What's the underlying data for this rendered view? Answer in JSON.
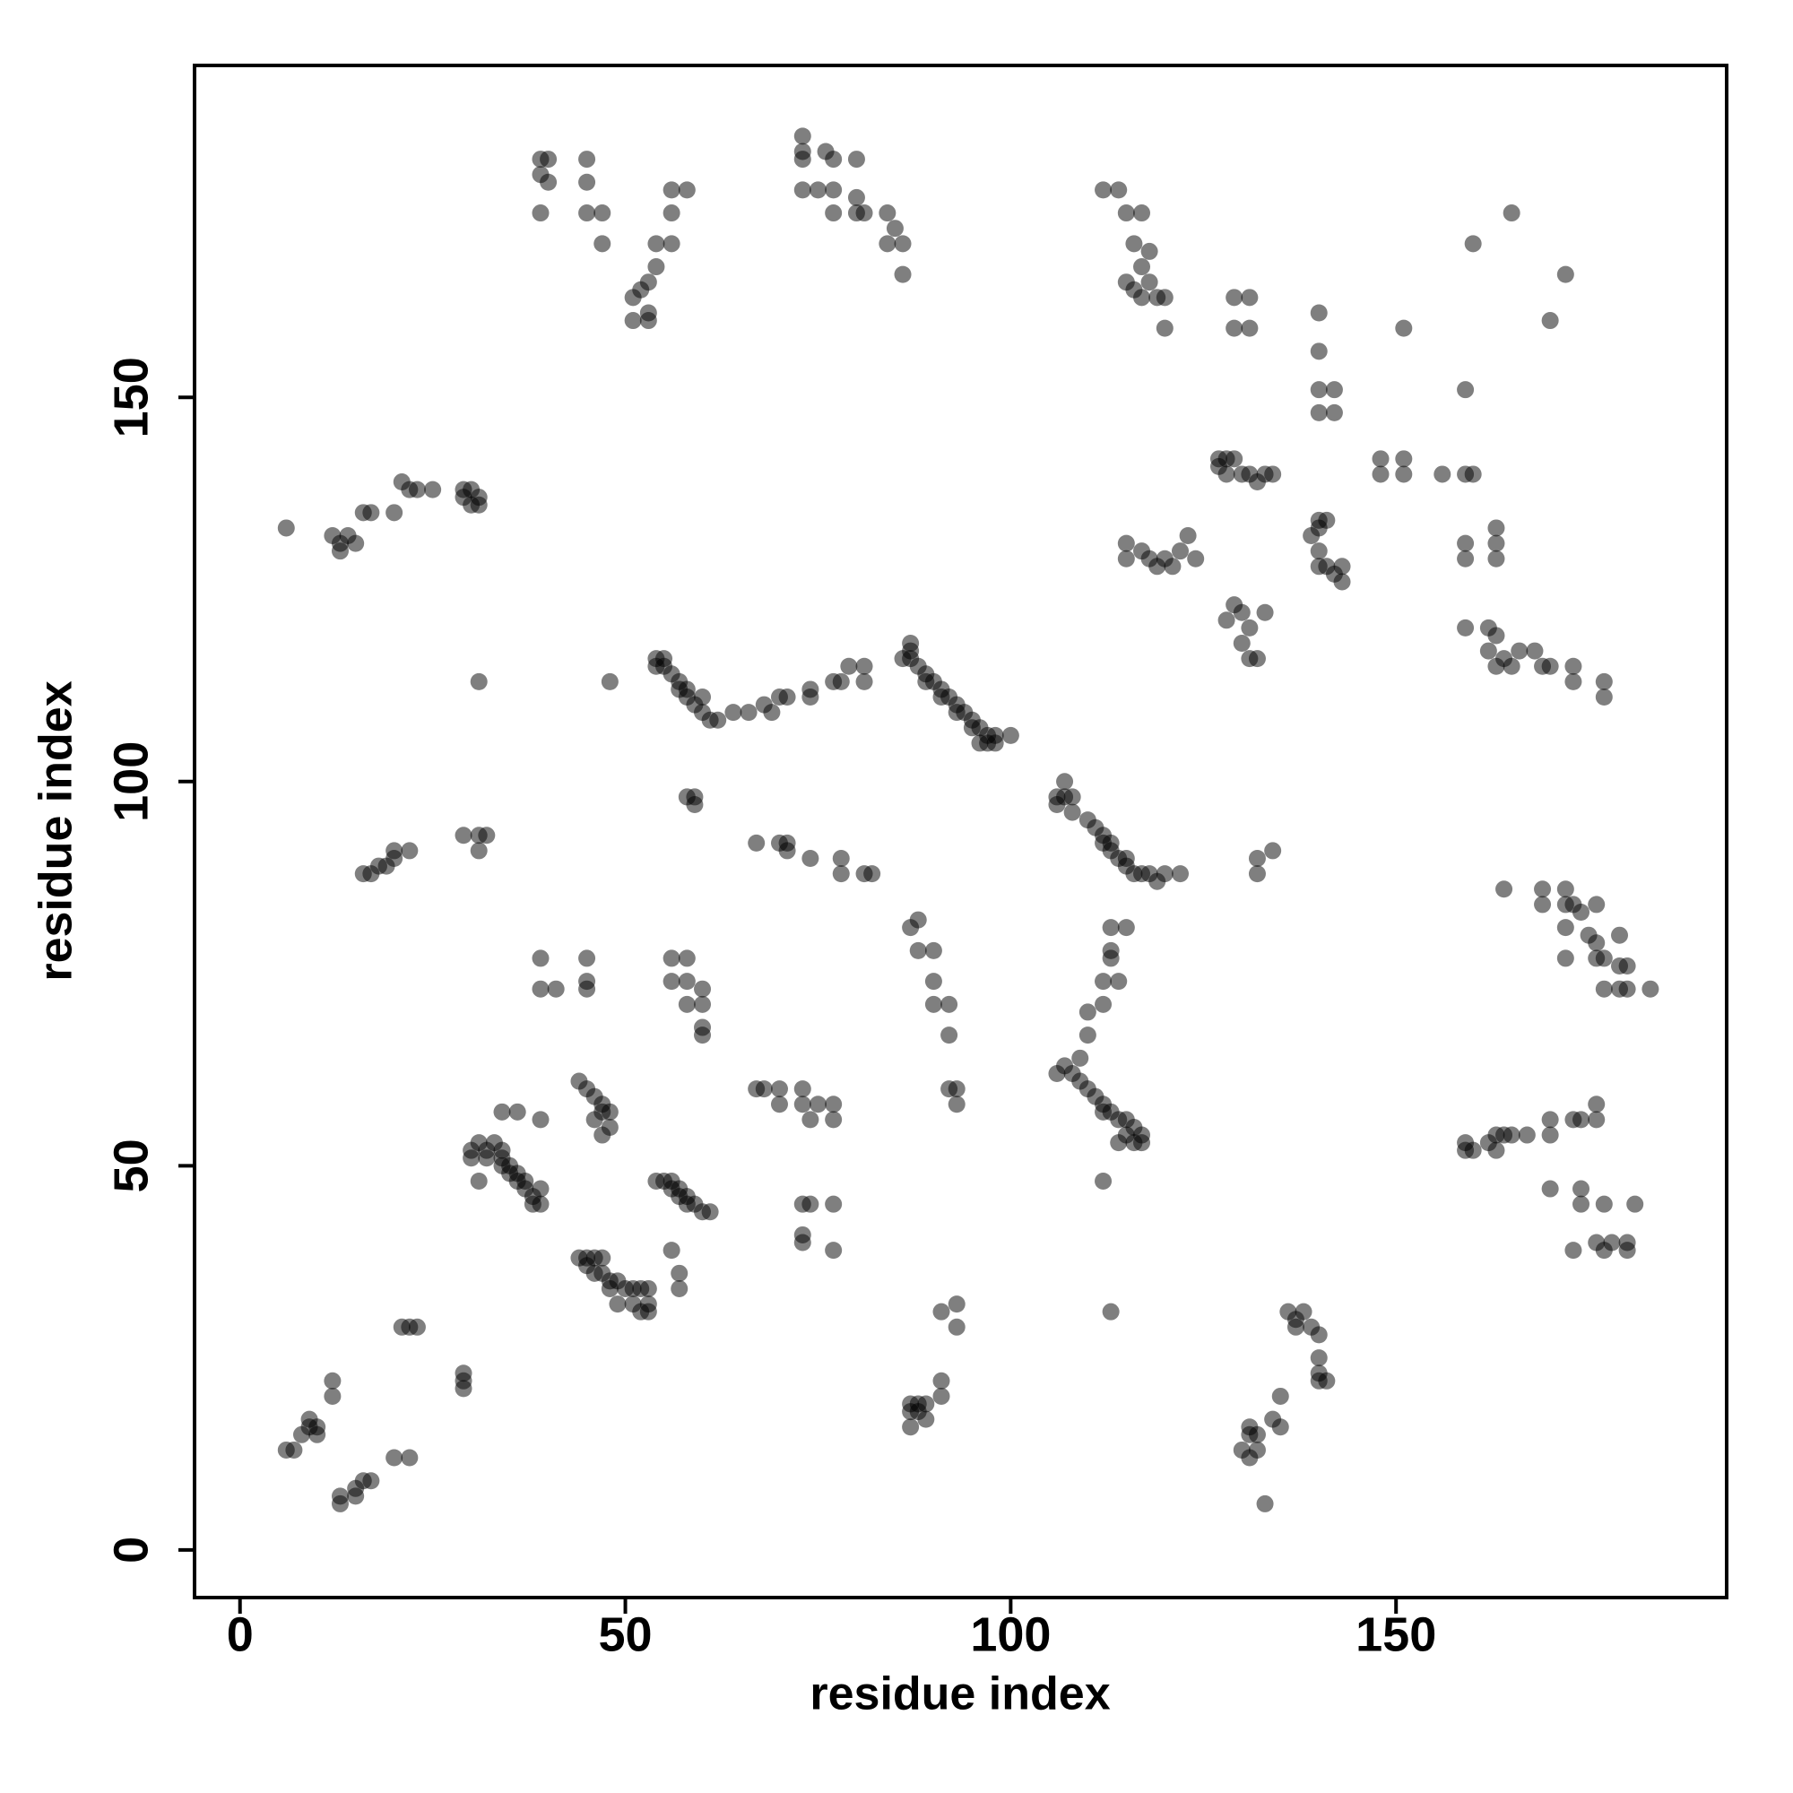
{
  "chart_data": {
    "type": "scatter",
    "xlabel": "residue index",
    "ylabel": "residue index",
    "xlim": [
      -5.9,
      192.9
    ],
    "ylim": [
      -6.2,
      193.2
    ],
    "xticks": [
      0,
      50,
      100,
      150
    ],
    "yticks": [
      0,
      50,
      100,
      150
    ],
    "color": "#000000",
    "opacity": 0.5,
    "x": [
      39,
      40,
      39,
      40,
      39,
      45,
      45,
      45,
      47,
      47,
      56,
      58,
      56,
      54,
      56,
      54,
      53,
      52,
      51,
      53,
      51,
      53,
      73,
      73,
      73,
      76,
      77,
      80,
      73,
      75,
      77,
      80,
      77,
      80,
      81,
      84,
      85,
      84,
      86,
      86,
      112,
      114,
      115,
      117,
      116,
      118,
      117,
      115,
      116,
      118,
      117,
      119,
      120,
      120,
      129,
      131,
      129,
      131,
      140,
      140,
      140,
      142,
      142,
      140,
      151,
      160,
      165,
      172,
      170,
      159,
      148,
      151,
      148,
      151,
      156,
      159,
      160,
      127,
      128,
      129,
      127,
      128,
      130,
      131,
      132,
      133,
      134,
      140,
      140,
      141,
      139,
      140,
      140,
      141,
      142,
      143,
      143,
      115,
      115,
      117,
      118,
      119,
      120,
      121,
      122,
      123,
      124,
      128,
      129,
      130,
      131,
      130,
      131,
      132,
      133,
      159,
      159,
      163,
      163,
      163,
      159,
      162,
      163,
      162,
      163,
      164,
      166,
      165,
      168,
      169,
      170,
      173,
      173,
      177,
      177,
      6,
      12,
      13,
      13,
      14,
      15,
      16,
      17,
      20,
      21,
      22,
      23,
      25,
      29,
      30,
      29,
      30,
      31,
      31,
      31,
      48,
      54,
      55,
      54,
      55,
      56,
      57,
      57,
      58,
      58,
      59,
      60,
      60,
      61,
      62,
      64,
      66,
      68,
      69,
      70,
      71,
      74,
      74,
      77,
      78,
      79,
      81,
      81,
      87,
      87,
      86,
      87,
      88,
      89,
      89,
      90,
      91,
      91,
      92,
      93,
      93,
      94,
      95,
      95,
      96,
      97,
      98,
      98,
      96,
      97,
      100,
      107,
      106,
      107,
      108,
      106,
      108,
      110,
      111,
      112,
      112,
      113,
      113,
      114,
      115,
      115,
      116,
      117,
      118,
      119,
      120,
      122,
      58,
      59,
      59,
      67,
      70,
      71,
      71,
      74,
      78,
      78,
      81,
      82,
      16,
      17,
      18,
      19,
      20,
      20,
      22,
      29,
      31,
      32,
      31,
      132,
      134,
      132,
      164,
      169,
      169,
      172,
      172,
      173,
      174,
      176,
      172,
      175,
      176,
      179,
      172,
      176,
      177,
      179,
      180,
      177,
      179,
      180,
      183,
      87,
      88,
      88,
      90,
      90,
      90,
      92,
      92,
      39,
      39,
      41,
      45,
      45,
      45,
      56,
      58,
      56,
      58,
      58,
      60,
      60,
      60,
      60,
      115,
      113,
      113,
      113,
      112,
      114,
      112,
      110,
      110,
      109,
      108,
      107,
      106,
      109,
      110,
      111,
      112,
      112,
      113,
      114,
      115,
      115,
      116,
      117,
      114,
      116,
      117,
      112,
      44,
      45,
      46,
      47,
      47,
      48,
      46,
      48,
      47,
      67,
      68,
      70,
      70,
      73,
      73,
      75,
      74,
      77,
      77,
      34,
      36,
      39,
      30,
      30,
      31,
      32,
      33,
      32,
      34,
      34,
      34,
      35,
      35,
      36,
      36,
      37,
      37,
      38,
      39,
      39,
      38,
      31,
      54,
      55,
      56,
      56,
      57,
      57,
      58,
      58,
      59,
      60,
      61,
      92,
      93,
      93,
      159,
      159,
      160,
      162,
      163,
      164,
      163,
      165,
      167,
      170,
      170,
      173,
      174,
      176,
      176,
      170,
      174,
      174,
      177,
      181,
      176,
      177,
      178,
      180,
      180,
      173,
      73,
      74,
      77,
      73,
      73,
      77,
      44,
      45,
      46,
      47,
      45,
      46,
      47,
      48,
      49,
      48,
      50,
      51,
      52,
      53,
      51,
      52,
      53,
      53,
      49,
      56,
      57,
      57,
      91,
      93,
      93,
      113,
      136,
      137,
      138,
      137,
      139,
      140,
      140,
      140,
      140,
      141,
      135,
      134,
      135,
      131,
      131,
      132,
      132,
      130,
      131,
      133,
      87,
      88,
      89,
      87,
      88,
      89,
      87,
      91,
      91,
      21,
      22,
      23,
      29,
      29,
      29,
      12,
      12,
      6,
      7,
      8,
      9,
      9,
      10,
      10,
      13,
      13,
      15,
      15,
      16,
      17,
      20,
      22
    ],
    "values": [
      181,
      181,
      179,
      178,
      174,
      181,
      178,
      174,
      174,
      170,
      177,
      177,
      174,
      170,
      170,
      167,
      165,
      164,
      163,
      161,
      160,
      160,
      184,
      182,
      181,
      182,
      181,
      181,
      177,
      177,
      177,
      176,
      174,
      174,
      174,
      174,
      172,
      170,
      170,
      166,
      177,
      177,
      174,
      174,
      170,
      169,
      167,
      165,
      164,
      165,
      163,
      163,
      163,
      159,
      163,
      163,
      159,
      159,
      161,
      156,
      151,
      151,
      148,
      148,
      159,
      170,
      174,
      166,
      160,
      151,
      142,
      142,
      140,
      140,
      140,
      140,
      140,
      142,
      142,
      142,
      141,
      140,
      140,
      140,
      139,
      140,
      140,
      134,
      133,
      134,
      132,
      130,
      128,
      128,
      127,
      128,
      126,
      131,
      129,
      130,
      129,
      128,
      129,
      128,
      130,
      132,
      129,
      121,
      123,
      122,
      120,
      118,
      116,
      116,
      122,
      131,
      129,
      133,
      131,
      129,
      120,
      120,
      119,
      117,
      115,
      116,
      117,
      115,
      117,
      115,
      115,
      115,
      113,
      113,
      111,
      133,
      132,
      131,
      130,
      132,
      131,
      135,
      135,
      135,
      139,
      138,
      138,
      138,
      138,
      138,
      137,
      136,
      137,
      136,
      113,
      113,
      116,
      116,
      115,
      115,
      114,
      113,
      112,
      112,
      111,
      110,
      111,
      109,
      108,
      108,
      109,
      109,
      110,
      109,
      111,
      111,
      112,
      111,
      113,
      113,
      115,
      115,
      113,
      118,
      117,
      116,
      116,
      115,
      114,
      113,
      113,
      112,
      111,
      111,
      110,
      109,
      109,
      108,
      107,
      107,
      106,
      106,
      105,
      105,
      105,
      106,
      100,
      98,
      98,
      98,
      97,
      96,
      95,
      94,
      93,
      92,
      92,
      91,
      90,
      90,
      89,
      88,
      88,
      88,
      87,
      88,
      88,
      98,
      98,
      97,
      92,
      92,
      92,
      91,
      90,
      90,
      88,
      88,
      88,
      88,
      88,
      89,
      89,
      90,
      91,
      91,
      93,
      93,
      93,
      91,
      90,
      91,
      88,
      86,
      86,
      84,
      84,
      86,
      84,
      83,
      84,
      81,
      80,
      79,
      80,
      77,
      77,
      77,
      76,
      76,
      73,
      73,
      73,
      73,
      81,
      82,
      78,
      78,
      74,
      71,
      71,
      67,
      77,
      73,
      73,
      77,
      74,
      73,
      77,
      77,
      74,
      74,
      71,
      71,
      73,
      68,
      67,
      81,
      81,
      78,
      77,
      74,
      74,
      71,
      70,
      67,
      64,
      62,
      63,
      62,
      61,
      60,
      59,
      58,
      57,
      57,
      56,
      56,
      54,
      55,
      54,
      53,
      53,
      53,
      48,
      61,
      60,
      59,
      58,
      57,
      57,
      56,
      55,
      54,
      60,
      60,
      60,
      58,
      60,
      58,
      58,
      56,
      56,
      58,
      57,
      57,
      56,
      52,
      51,
      53,
      52,
      53,
      51,
      52,
      51,
      50,
      50,
      49,
      49,
      48,
      48,
      47,
      46,
      47,
      45,
      45,
      48,
      48,
      48,
      48,
      47,
      47,
      46,
      46,
      45,
      45,
      44,
      44,
      60,
      60,
      58,
      53,
      52,
      52,
      53,
      54,
      54,
      52,
      54,
      54,
      56,
      54,
      56,
      56,
      58,
      56,
      47,
      47,
      45,
      45,
      45,
      40,
      39,
      40,
      40,
      39,
      39,
      45,
      45,
      45,
      41,
      40,
      39,
      38,
      38,
      38,
      38,
      37,
      36,
      36,
      35,
      35,
      34,
      34,
      34,
      34,
      34,
      32,
      31,
      32,
      31,
      32,
      39,
      36,
      34,
      31,
      32,
      29,
      31,
      31,
      30,
      31,
      29,
      29,
      28,
      25,
      23,
      22,
      22,
      20,
      17,
      16,
      15,
      16,
      15,
      13,
      13,
      12,
      6,
      19,
      19,
      19,
      18,
      18,
      17,
      16,
      22,
      20,
      29,
      29,
      29,
      23,
      22,
      21,
      22,
      20,
      13,
      13,
      15,
      16,
      17,
      16,
      15,
      7,
      6,
      8,
      7,
      9,
      9,
      12,
      12
    ]
  }
}
